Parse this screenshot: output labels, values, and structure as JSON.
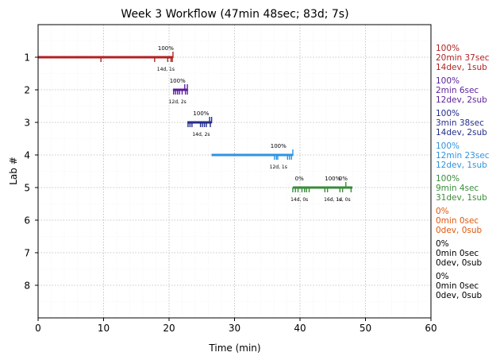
{
  "chart_data": {
    "type": "timeline",
    "title": "Week 3 Workflow (47min 48sec; 83d; 7s)",
    "xlabel": "Time (min)",
    "ylabel": "Lab #",
    "xlim": [
      0,
      60
    ],
    "xticks": [
      "0",
      "10",
      "20",
      "30",
      "40",
      "50",
      "60"
    ],
    "xtick_values": [
      0,
      10,
      20,
      30,
      40,
      50,
      60
    ],
    "ylim": [
      0,
      9
    ],
    "yticks": [
      "1",
      "2",
      "3",
      "4",
      "5",
      "6",
      "7",
      "8"
    ],
    "y_inverted": true,
    "grid": true,
    "labs": [
      {
        "lab": 1,
        "color": "#b22222",
        "start": 0,
        "end": 20.6,
        "ticks_down": [
          9.6,
          17.8,
          19.8,
          20.3,
          20.5
        ],
        "ticks_up": [
          20.6
        ],
        "annotations": [
          {
            "x": 19.5,
            "top": "100%",
            "bottom": "14d, 1s"
          }
        ],
        "summary": [
          "100%",
          "20min 37sec",
          "14dev, 1sub"
        ]
      },
      {
        "lab": 2,
        "color": "#5a1f9c",
        "start": 20.6,
        "end": 22.8,
        "ticks_down": [
          20.7,
          21.0,
          21.3,
          21.6,
          22.0,
          22.5,
          22.8
        ],
        "ticks_up": [
          22.4,
          22.8
        ],
        "annotations": [
          {
            "x": 21.3,
            "top": "100%",
            "bottom": "12d, 2s"
          }
        ],
        "summary": [
          "100%",
          "2min 6sec",
          "12dev, 2sub"
        ]
      },
      {
        "lab": 3,
        "color": "#232d8a",
        "start": 22.8,
        "end": 26.5,
        "ticks_down": [
          22.9,
          23.2,
          23.5,
          24.8,
          25.1,
          25.4,
          25.7,
          26.3
        ],
        "ticks_up": [
          26.2,
          26.5
        ],
        "annotations": [
          {
            "x": 24.9,
            "top": "100%",
            "bottom": "14d, 2s"
          }
        ],
        "summary": [
          "100%",
          "3min 38sec",
          "14dev, 2sub"
        ]
      },
      {
        "lab": 4,
        "color": "#2e94e0",
        "start": 26.5,
        "end": 38.9,
        "ticks_down": [
          36.1,
          36.4,
          36.6,
          38.1,
          38.4,
          38.7
        ],
        "ticks_up": [
          38.9
        ],
        "annotations": [
          {
            "x": 36.7,
            "top": "100%",
            "bottom": "12d, 1s"
          }
        ],
        "summary": [
          "100%",
          "12min 23sec",
          "12dev, 1sub"
        ]
      },
      {
        "lab": 5,
        "color": "#3a8c3a",
        "start": 38.9,
        "end": 48.0,
        "ticks_down": [
          38.9,
          39.3,
          39.7,
          40.3,
          40.7,
          41.0,
          41.4,
          43.8,
          44.2,
          46.1,
          46.5,
          47.8
        ],
        "ticks_up": [
          47.0
        ],
        "annotations": [
          {
            "x": 39.9,
            "top": "0%",
            "bottom": "14d, 0s"
          },
          {
            "x": 45.0,
            "top": "100%",
            "bottom": "16d, 1s"
          },
          {
            "x": 46.6,
            "top": "0%",
            "bottom": "1d, 0s"
          }
        ],
        "summary": [
          "100%",
          "9min 4sec",
          "31dev, 1sub"
        ]
      },
      {
        "lab": 6,
        "color": "#e0560b",
        "summary": [
          "0%",
          "0min 0sec",
          "0dev, 0sub"
        ]
      },
      {
        "lab": 7,
        "color": "#000000",
        "summary": [
          "0%",
          "0min 0sec",
          "0dev, 0sub"
        ]
      },
      {
        "lab": 8,
        "color": "#000000",
        "summary": [
          "0%",
          "0min 0sec",
          "0dev, 0sub"
        ]
      }
    ]
  }
}
